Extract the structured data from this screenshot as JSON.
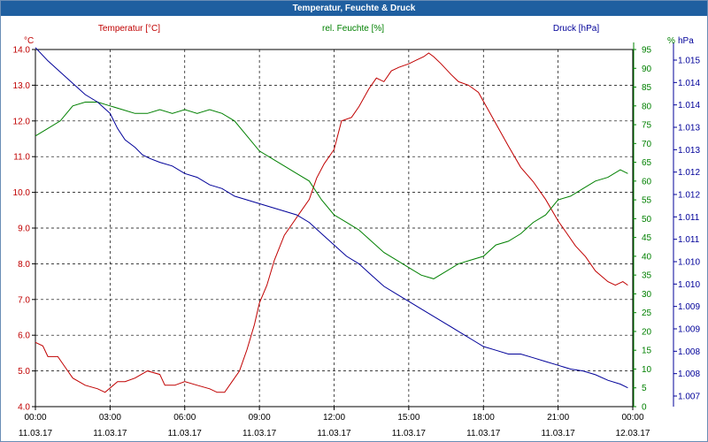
{
  "window": {
    "title": "Temperatur, Feuchte & Druck"
  },
  "chart_data": {
    "type": "line",
    "title": "Temperatur, Feuchte & Druck",
    "grid": true,
    "colors": {
      "temperature": "#c00000",
      "humidity": "#008000",
      "pressure": "#000099",
      "grid": "#000000"
    },
    "x_ticks": [
      {
        "time": "00:00",
        "date": "11.03.17",
        "h": 0
      },
      {
        "time": "03:00",
        "date": "11.03.17",
        "h": 3
      },
      {
        "time": "06:00",
        "date": "11.03.17",
        "h": 6
      },
      {
        "time": "09:00",
        "date": "11.03.17",
        "h": 9
      },
      {
        "time": "12:00",
        "date": "11.03.17",
        "h": 12
      },
      {
        "time": "15:00",
        "date": "11.03.17",
        "h": 15
      },
      {
        "time": "18:00",
        "date": "11.03.17",
        "h": 18
      },
      {
        "time": "21:00",
        "date": "11.03.17",
        "h": 21
      },
      {
        "time": "00:00",
        "date": "12.03.17",
        "h": 24
      }
    ],
    "axes": {
      "temperature": {
        "label": "Temperatur [°C]",
        "unit": "°C",
        "range": [
          4.0,
          14.0
        ],
        "ticks": [
          "4.0",
          "5.0",
          "6.0",
          "7.0",
          "8.0",
          "9.0",
          "10.0",
          "11.0",
          "12.0",
          "13.0",
          "14.0"
        ]
      },
      "humidity": {
        "label": "rel. Feuchte [%]",
        "unit": "%",
        "range": [
          0,
          95
        ],
        "ticks": [
          "0",
          "5",
          "10",
          "15",
          "20",
          "25",
          "30",
          "35",
          "40",
          "45",
          "50",
          "55",
          "60",
          "65",
          "70",
          "75",
          "80",
          "85",
          "90",
          "95"
        ]
      },
      "pressure": {
        "label": "Druck [hPa]",
        "unit": "hPa",
        "ticks": [
          "1.007",
          "1.008",
          "1.008",
          "1.009",
          "1.009",
          "1.010",
          "1.010",
          "1.011",
          "1.011",
          "1.012",
          "1.012",
          "1.013",
          "1.013",
          "1.014",
          "1.014",
          "1.015"
        ]
      }
    },
    "series": [
      {
        "key": "temperature",
        "name": "Temperatur [°C]",
        "axis": "temperature",
        "points": [
          [
            0,
            5.8
          ],
          [
            0.3,
            5.7
          ],
          [
            0.5,
            5.4
          ],
          [
            0.9,
            5.4
          ],
          [
            1.2,
            5.1
          ],
          [
            1.5,
            4.8
          ],
          [
            2,
            4.6
          ],
          [
            2.5,
            4.5
          ],
          [
            2.8,
            4.4
          ],
          [
            3.3,
            4.7
          ],
          [
            3.6,
            4.7
          ],
          [
            4,
            4.8
          ],
          [
            4.5,
            5
          ],
          [
            5,
            4.9
          ],
          [
            5.2,
            4.6
          ],
          [
            5.6,
            4.6
          ],
          [
            6,
            4.7
          ],
          [
            6.5,
            4.6
          ],
          [
            7,
            4.5
          ],
          [
            7.3,
            4.4
          ],
          [
            7.6,
            4.4
          ],
          [
            7.9,
            4.7
          ],
          [
            8.2,
            5
          ],
          [
            8.5,
            5.6
          ],
          [
            8.8,
            6.3
          ],
          [
            9,
            6.9
          ],
          [
            9.3,
            7.4
          ],
          [
            9.6,
            8.1
          ],
          [
            10,
            8.8
          ],
          [
            10.3,
            9.1
          ],
          [
            10.6,
            9.4
          ],
          [
            11,
            9.8
          ],
          [
            11.3,
            10.4
          ],
          [
            11.6,
            10.8
          ],
          [
            12,
            11.2
          ],
          [
            12.3,
            12.0
          ],
          [
            12.7,
            12.1
          ],
          [
            13,
            12.4
          ],
          [
            13.4,
            12.9
          ],
          [
            13.7,
            13.2
          ],
          [
            14,
            13.1
          ],
          [
            14.3,
            13.4
          ],
          [
            14.6,
            13.5
          ],
          [
            15,
            13.6
          ],
          [
            15.3,
            13.7
          ],
          [
            15.6,
            13.8
          ],
          [
            15.8,
            13.9
          ],
          [
            16,
            13.8
          ],
          [
            16.3,
            13.6
          ],
          [
            16.7,
            13.3
          ],
          [
            17,
            13.1
          ],
          [
            17.4,
            13.0
          ],
          [
            17.8,
            12.8
          ],
          [
            18.2,
            12.3
          ],
          [
            18.6,
            11.8
          ],
          [
            19,
            11.3
          ],
          [
            19.5,
            10.7
          ],
          [
            20,
            10.3
          ],
          [
            20.5,
            9.8
          ],
          [
            21,
            9.2
          ],
          [
            21.3,
            8.9
          ],
          [
            21.7,
            8.5
          ],
          [
            22.1,
            8.2
          ],
          [
            22.5,
            7.8
          ],
          [
            23,
            7.5
          ],
          [
            23.3,
            7.4
          ],
          [
            23.6,
            7.5
          ],
          [
            23.8,
            7.4
          ]
        ]
      },
      {
        "key": "humidity",
        "name": "rel. Feuchte [%]",
        "axis": "humidity",
        "points": [
          [
            0,
            72
          ],
          [
            0.5,
            74
          ],
          [
            1,
            76
          ],
          [
            1.5,
            80
          ],
          [
            2,
            81
          ],
          [
            2.5,
            81
          ],
          [
            3,
            80
          ],
          [
            3.5,
            79
          ],
          [
            4,
            78
          ],
          [
            4.5,
            78
          ],
          [
            5,
            79
          ],
          [
            5.5,
            78
          ],
          [
            6,
            79
          ],
          [
            6.5,
            78
          ],
          [
            7,
            79
          ],
          [
            7.5,
            78
          ],
          [
            8,
            76
          ],
          [
            8.5,
            72
          ],
          [
            9,
            68
          ],
          [
            9.5,
            66
          ],
          [
            10,
            64
          ],
          [
            10.5,
            62
          ],
          [
            11,
            60
          ],
          [
            11.5,
            55
          ],
          [
            12,
            51
          ],
          [
            12.5,
            49
          ],
          [
            13,
            47
          ],
          [
            13.5,
            44
          ],
          [
            14,
            41
          ],
          [
            14.5,
            39
          ],
          [
            15,
            37
          ],
          [
            15.5,
            35
          ],
          [
            16,
            34
          ],
          [
            16.5,
            36
          ],
          [
            17,
            38
          ],
          [
            17.5,
            39
          ],
          [
            18,
            40
          ],
          [
            18.5,
            43
          ],
          [
            19,
            44
          ],
          [
            19.5,
            46
          ],
          [
            20,
            49
          ],
          [
            20.5,
            51
          ],
          [
            21,
            55
          ],
          [
            21.5,
            56
          ],
          [
            22,
            58
          ],
          [
            22.5,
            60
          ],
          [
            23,
            61
          ],
          [
            23.5,
            63
          ],
          [
            23.8,
            62
          ]
        ]
      },
      {
        "key": "pressure",
        "name": "Druck [hPa]",
        "axis": "pressure",
        "points": [
          [
            0,
            95.5
          ],
          [
            0.5,
            92
          ],
          [
            1,
            89
          ],
          [
            1.5,
            86
          ],
          [
            2,
            83
          ],
          [
            2.5,
            81
          ],
          [
            3,
            78
          ],
          [
            3.3,
            74
          ],
          [
            3.6,
            71
          ],
          [
            4,
            69
          ],
          [
            4.3,
            67
          ],
          [
            4.6,
            66
          ],
          [
            5,
            65
          ],
          [
            5.5,
            64
          ],
          [
            6,
            62
          ],
          [
            6.5,
            61
          ],
          [
            7,
            59
          ],
          [
            7.5,
            58
          ],
          [
            8,
            56
          ],
          [
            8.5,
            55
          ],
          [
            9,
            54
          ],
          [
            9.5,
            53
          ],
          [
            10,
            52
          ],
          [
            10.5,
            51
          ],
          [
            11,
            49
          ],
          [
            11.5,
            46
          ],
          [
            12,
            43
          ],
          [
            12.5,
            40
          ],
          [
            13,
            38
          ],
          [
            13.5,
            35
          ],
          [
            14,
            32
          ],
          [
            14.5,
            30
          ],
          [
            15,
            28
          ],
          [
            15.5,
            26
          ],
          [
            16,
            24
          ],
          [
            16.5,
            22
          ],
          [
            17,
            20
          ],
          [
            17.5,
            18
          ],
          [
            18,
            16
          ],
          [
            18.5,
            15
          ],
          [
            19,
            14
          ],
          [
            19.5,
            14
          ],
          [
            20,
            13
          ],
          [
            20.5,
            12
          ],
          [
            21,
            11
          ],
          [
            21.5,
            10
          ],
          [
            22,
            9.5
          ],
          [
            22.5,
            8.5
          ],
          [
            23,
            7
          ],
          [
            23.5,
            6
          ],
          [
            23.8,
            5
          ]
        ]
      }
    ]
  }
}
